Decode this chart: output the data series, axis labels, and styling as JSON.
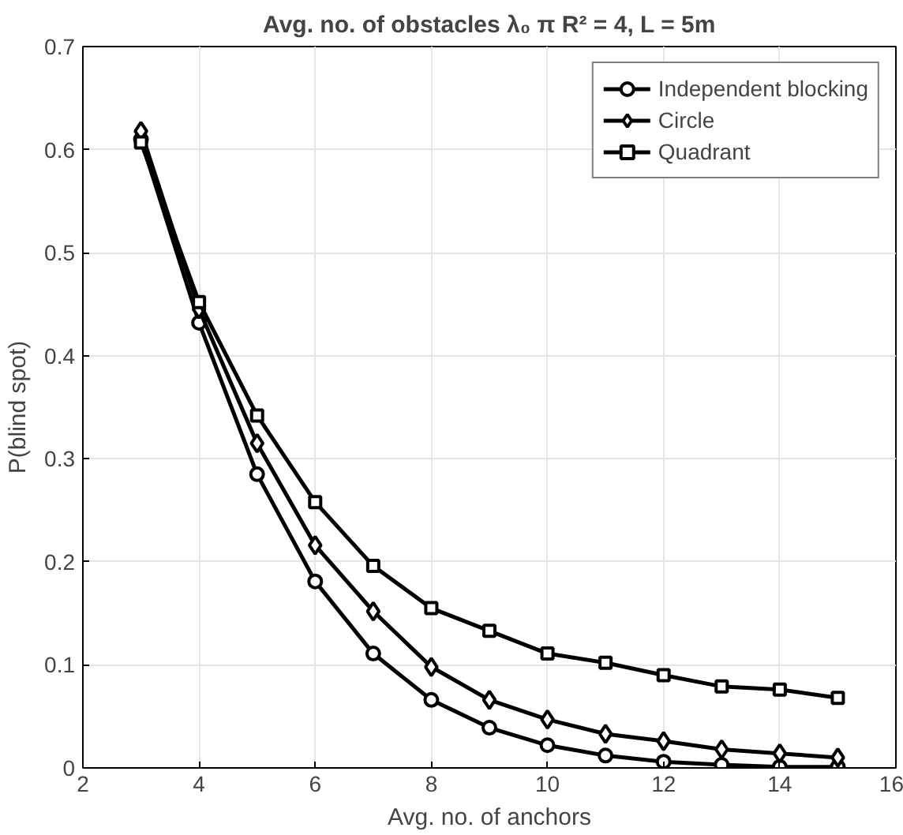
{
  "chart_data": {
    "type": "line",
    "title": "Avg. no. of obstacles λ₀ π R² = 4, L = 5m",
    "xlabel": "Avg. no. of anchors",
    "ylabel": "P(blind spot)",
    "x": [
      3,
      4,
      5,
      6,
      7,
      8,
      9,
      10,
      11,
      12,
      13,
      14,
      15
    ],
    "series": [
      {
        "name": "Independent blocking",
        "color": "#000000",
        "marker": "circle",
        "values": [
          0.61,
          0.432,
          0.285,
          0.181,
          0.111,
          0.066,
          0.039,
          0.022,
          0.012,
          0.006,
          0.003,
          0.001,
          0.001
        ]
      },
      {
        "name": "Circle",
        "color": "#000000",
        "marker": "diamond",
        "values": [
          0.618,
          0.445,
          0.315,
          0.216,
          0.152,
          0.098,
          0.066,
          0.047,
          0.033,
          0.026,
          0.018,
          0.014,
          0.01
        ]
      },
      {
        "name": "Quadrant",
        "color": "#000000",
        "marker": "square",
        "values": [
          0.607,
          0.452,
          0.342,
          0.258,
          0.196,
          0.155,
          0.133,
          0.111,
          0.102,
          0.09,
          0.079,
          0.076,
          0.068
        ]
      }
    ],
    "xlim": [
      2,
      16
    ],
    "ylim": [
      0,
      0.7
    ],
    "xticks": [
      2,
      4,
      6,
      8,
      10,
      12,
      14,
      16
    ],
    "yticks": [
      0,
      0.1,
      0.2,
      0.3,
      0.4,
      0.5,
      0.6,
      0.7
    ],
    "grid": true,
    "legend": "top right",
    "line_style": "solid"
  }
}
